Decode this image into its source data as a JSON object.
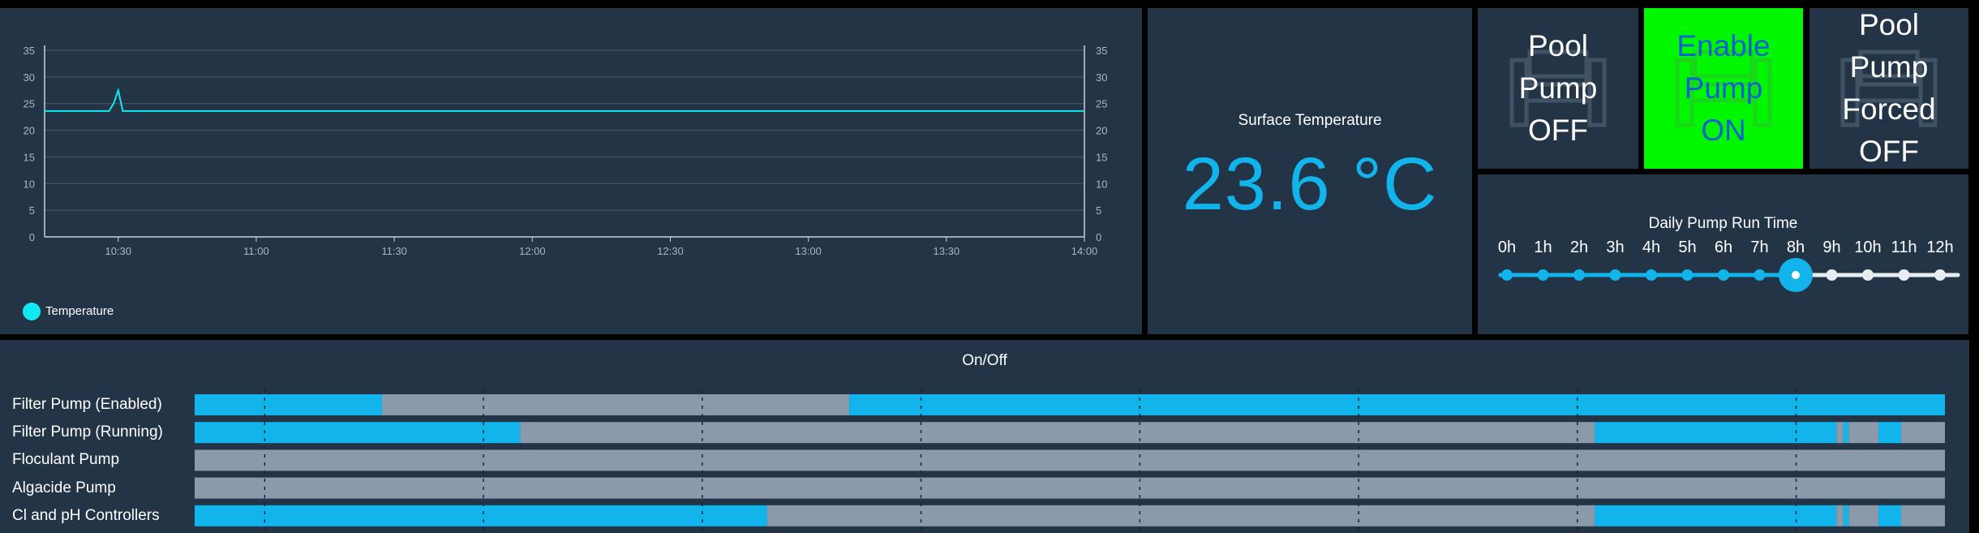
{
  "temperature_chart": {
    "legend_label": "Temperature",
    "legend_color": "#11e8f2",
    "series_color": "#11e8f2",
    "y_ticks": [
      "0",
      "5",
      "10",
      "15",
      "20",
      "25",
      "30",
      "35"
    ],
    "x_ticks": [
      "10:30",
      "11:00",
      "11:30",
      "12:00",
      "12:30",
      "13:00",
      "13:30",
      "14:00"
    ]
  },
  "chart_data": {
    "type": "line",
    "series": [
      {
        "name": "Temperature",
        "color": "#11e8f2",
        "x": [
          "10:14",
          "10:28",
          "10:29",
          "10:30",
          "10:31",
          "14:00"
        ],
        "values": [
          23.6,
          23.6,
          25.0,
          27.5,
          23.6,
          23.6
        ]
      }
    ],
    "ylim": [
      0,
      35
    ],
    "xlim": [
      "10:14",
      "14:00"
    ],
    "grid": true,
    "legend": "bottom-left"
  },
  "surface_temperature": {
    "title": "Surface Temperature",
    "value": "23.6 °C",
    "value_color": "#11b5ec"
  },
  "tiles": {
    "pool_pump": [
      "Pool",
      "Pump",
      "OFF"
    ],
    "enable_pump": [
      "Enable",
      "Pump",
      "ON"
    ],
    "forced": [
      "Pool",
      "Pump",
      "Forced",
      "OFF"
    ]
  },
  "daily_run_time": {
    "title": "Daily Pump Run Time",
    "hours": [
      "0h",
      "1h",
      "2h",
      "3h",
      "4h",
      "5h",
      "6h",
      "7h",
      "8h",
      "9h",
      "10h",
      "11h",
      "12h"
    ],
    "selected": "8h",
    "active_color": "#11b5ec",
    "inactive_color": "#e8edf2"
  },
  "onoff": {
    "title": "On/Off",
    "on_color": "#11b5ec",
    "off_color": "#8a9aaa",
    "rows": [
      {
        "label": "Filter Pump (Enabled)",
        "segments": [
          [
            0,
            0.107,
            "on"
          ],
          [
            0.107,
            0.374,
            "off"
          ],
          [
            0.374,
            1,
            "on"
          ]
        ]
      },
      {
        "label": "Filter Pump (Running)",
        "segments": [
          [
            0,
            0.186,
            "on"
          ],
          [
            0.186,
            0.8,
            "off"
          ],
          [
            0.8,
            0.938,
            "on"
          ],
          [
            0.938,
            0.942,
            "off"
          ],
          [
            0.942,
            0.945,
            "on"
          ],
          [
            0.945,
            0.962,
            "off"
          ],
          [
            0.962,
            0.975,
            "on"
          ],
          [
            0.975,
            1,
            "off"
          ]
        ]
      },
      {
        "label": "Floculant Pump",
        "segments": [
          [
            0,
            1,
            "off"
          ]
        ]
      },
      {
        "label": "Algacide Pump",
        "segments": [
          [
            0,
            1,
            "off"
          ]
        ]
      },
      {
        "label": "Cl and pH Controllers",
        "segments": [
          [
            0,
            0.327,
            "on"
          ],
          [
            0.327,
            0.8,
            "off"
          ],
          [
            0.8,
            0.938,
            "on"
          ],
          [
            0.938,
            0.942,
            "off"
          ],
          [
            0.942,
            0.945,
            "on"
          ],
          [
            0.945,
            0.962,
            "off"
          ],
          [
            0.962,
            0.975,
            "on"
          ],
          [
            0.975,
            1,
            "off"
          ]
        ]
      }
    ]
  }
}
